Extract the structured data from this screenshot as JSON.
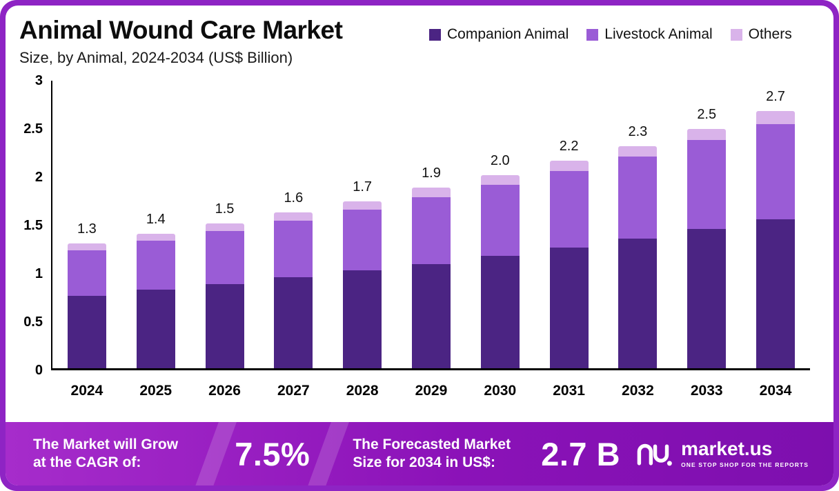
{
  "header": {
    "title": "Animal Wound Care Market",
    "subtitle": "Size, by Animal, 2024-2034 (US$ Billion)"
  },
  "legend": {
    "items": [
      {
        "label": "Companion Animal",
        "color": "#4b2483"
      },
      {
        "label": "Livestock Animal",
        "color": "#9a5cd6"
      },
      {
        "label": "Others",
        "color": "#d9b3ea"
      }
    ]
  },
  "chart_data": {
    "type": "bar",
    "stacked": true,
    "title": "Animal Wound Care Market Size, by Animal, 2024-2034 (US$ Billion)",
    "categories": [
      "2024",
      "2025",
      "2026",
      "2027",
      "2028",
      "2029",
      "2030",
      "2031",
      "2032",
      "2033",
      "2034"
    ],
    "series": [
      {
        "name": "Companion Animal",
        "color": "#4b2483",
        "values": [
          0.75,
          0.81,
          0.87,
          0.94,
          1.01,
          1.08,
          1.16,
          1.25,
          1.34,
          1.44,
          1.54
        ]
      },
      {
        "name": "Livestock Animal",
        "color": "#9a5cd6",
        "values": [
          0.47,
          0.51,
          0.55,
          0.59,
          0.63,
          0.69,
          0.74,
          0.79,
          0.85,
          0.92,
          0.99
        ]
      },
      {
        "name": "Others",
        "color": "#d9b3ea",
        "values": [
          0.07,
          0.07,
          0.08,
          0.08,
          0.09,
          0.1,
          0.1,
          0.11,
          0.11,
          0.12,
          0.13
        ]
      }
    ],
    "totals": [
      "1.3",
      "1.4",
      "1.5",
      "1.6",
      "1.7",
      "1.9",
      "2.0",
      "2.2",
      "2.3",
      "2.5",
      "2.7"
    ],
    "ylim": [
      0,
      3
    ],
    "yticks": [
      "0",
      "0.5",
      "1",
      "1.5",
      "2",
      "2.5",
      "3"
    ],
    "ytick_values": [
      0,
      0.5,
      1,
      1.5,
      2,
      2.5,
      3
    ],
    "xlabel": "",
    "ylabel": "",
    "grid": false,
    "legend_position": "top-right"
  },
  "footer": {
    "cagr_label": "The Market will Grow at the CAGR of:",
    "cagr_value": "7.5%",
    "forecast_label": "The Forecasted Market Size for 2034 in US$:",
    "forecast_value": "2.7 B",
    "brand": "market.us",
    "brand_tagline": "ONE STOP SHOP FOR THE REPORTS"
  },
  "colors": {
    "frame": "#8e24c4",
    "banner_start": "#a62ccb",
    "banner_end": "#7d0fae",
    "axis": "#000000",
    "text": "#111111"
  }
}
